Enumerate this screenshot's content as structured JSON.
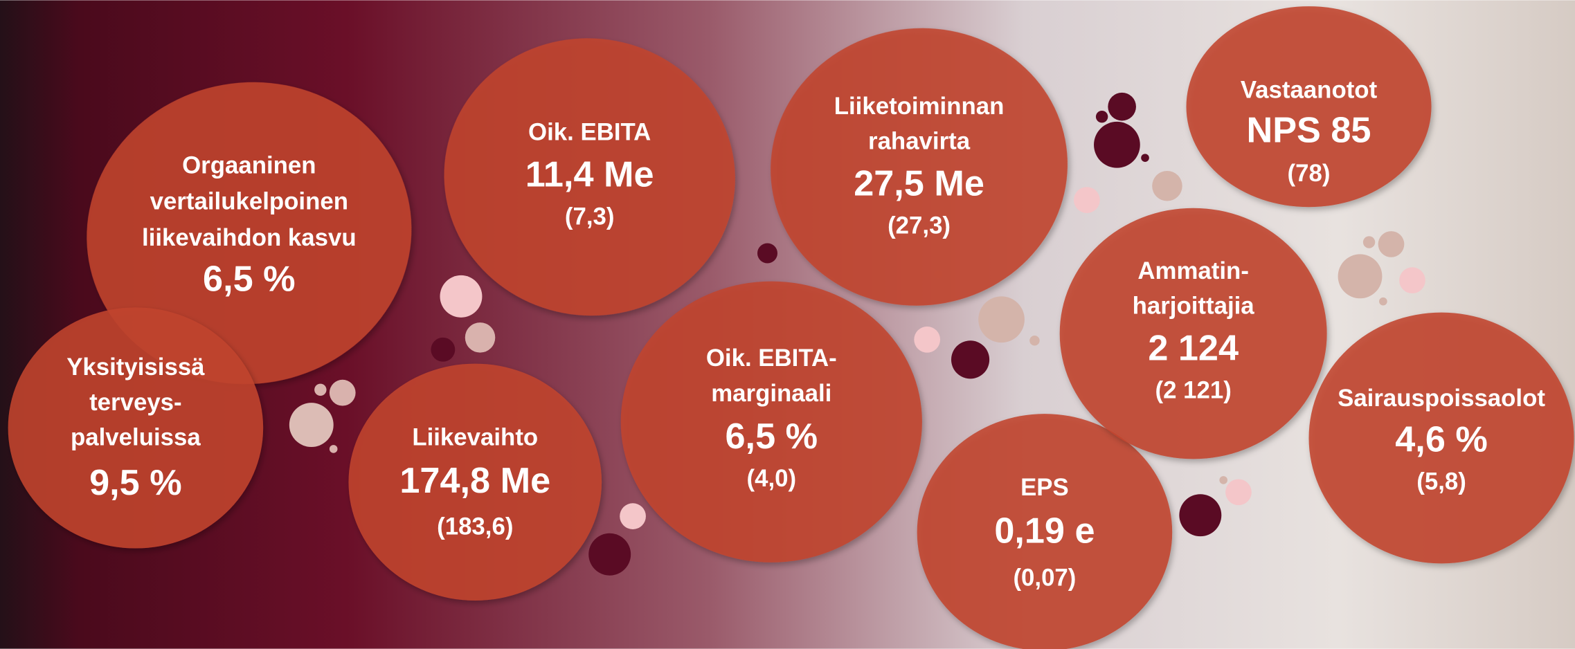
{
  "bubbles": [
    {
      "label": [
        "Orgaaninen",
        "vertailukelpoinen",
        "liikevaihdon kasvu"
      ],
      "value": "6,5 %"
    },
    {
      "label": [
        "Yksityisissä",
        "terveys-",
        "palveluissa"
      ],
      "value": "9,5 %"
    },
    {
      "label": [
        "Oik. EBITA"
      ],
      "value": "11,4 Me",
      "comparison": "(7,3)"
    },
    {
      "label": [
        "Liikevaihto"
      ],
      "value": "174,8 Me",
      "comparison": "(183,6)"
    },
    {
      "label": [
        "Oik. EBITA-",
        "marginaali"
      ],
      "value": "6,5 %",
      "comparison": "(4,0)"
    },
    {
      "label": [
        "Liiketoiminnan",
        "rahavirta"
      ],
      "value": "27,5 Me",
      "comparison": "(27,3)"
    },
    {
      "label": [
        "EPS"
      ],
      "value": "0,19 e",
      "comparison": "(0,07)"
    },
    {
      "label": [
        "Vastaanotot"
      ],
      "value": "NPS 85",
      "comparison": "(78)"
    },
    {
      "label": [
        "Ammatin-",
        "harjoittajia"
      ],
      "value": "2 124",
      "comparison": "(2 121)"
    },
    {
      "label": [
        "Sairauspoissaolot"
      ],
      "value": "4,6 %",
      "comparison": "(5,8)"
    }
  ]
}
